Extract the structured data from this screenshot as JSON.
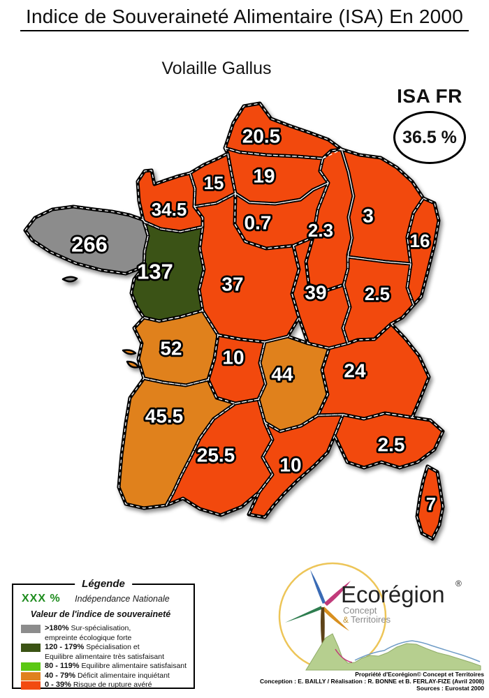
{
  "page": {
    "title": "Indice de Souveraineté Alimentaire (ISA) En 2000",
    "subtitle": "Volaille Gallus"
  },
  "isa_fr": {
    "label": "ISA FR",
    "value": "36.5 %"
  },
  "colors": {
    "sur_specialisation": "#8C8C8C",
    "specialisation": "#3B5314",
    "equilibre": "#5BC813",
    "deficit": "#E0811E",
    "rupture": "#F24A10",
    "independance_green": "#1E8C1E"
  },
  "legend": {
    "title": "Légende",
    "independance": {
      "symbol": "XXX %",
      "label": "Indépendance Nationale"
    },
    "subtitle": "Valeur de l'indice de souveraineté",
    "items": [
      {
        "range": ">180%",
        "text": "Sur-spécialisation,",
        "text2": "empreinte écologique forte",
        "category": "sur_specialisation"
      },
      {
        "range": "120 - 179%",
        "text": "Spécialisation et",
        "text2": "Equilibre alimentaire très satisfaisant",
        "category": "specialisation"
      },
      {
        "range": "80 - 119%",
        "text": "Equilibre alimentaire satisfaisant",
        "category": "equilibre"
      },
      {
        "range": "40 - 79%",
        "text": "Déficit alimentaire inquiétant",
        "category": "deficit"
      },
      {
        "range": "0 - 39%",
        "text": "Risque de rupture avéré",
        "category": "rupture"
      }
    ]
  },
  "logo": {
    "brand": "Ecorégion",
    "registered": "®",
    "sub1": "Concept",
    "sub2_amp": "&",
    "sub2": "Territoires"
  },
  "credits": {
    "line1": "Propriété d'Ecorégion© Concept et Territoires",
    "line2": "Conception : E. BAILLY / Réalisation : R. BONNE et B. FERLAY-FIZE (Avril 2008)",
    "line3": "Sources : Eurostat 2000"
  },
  "chart_data": {
    "type": "choropleth",
    "title": "Indice de Souveraineté Alimentaire (ISA) En 2000",
    "subtitle": "Volaille Gallus",
    "unit": "%",
    "national": {
      "label": "ISA FR",
      "value": "36.5 %"
    },
    "classes": [
      {
        "range": ">180%",
        "label": "Sur-spécialisation, empreinte écologique forte",
        "color_key": "sur_specialisation"
      },
      {
        "range": "120 - 179%",
        "label": "Spécialisation et Equilibre alimentaire très satisfaisant",
        "color_key": "specialisation"
      },
      {
        "range": "80 - 119%",
        "label": "Equilibre alimentaire satisfaisant",
        "color_key": "equilibre"
      },
      {
        "range": "40 - 79%",
        "label": "Déficit alimentaire inquiétant",
        "color_key": "deficit"
      },
      {
        "range": "0 - 39%",
        "label": "Risque de rupture avéré",
        "color_key": "rupture"
      }
    ],
    "regions": [
      {
        "id": "nord-pas-de-calais",
        "value": "20.5",
        "category": "rupture"
      },
      {
        "id": "picardie",
        "value": "19",
        "category": "rupture"
      },
      {
        "id": "haute-normandie",
        "value": "15",
        "category": "rupture"
      },
      {
        "id": "basse-normandie",
        "value": "34.5",
        "category": "rupture"
      },
      {
        "id": "ile-de-france",
        "value": "0.7",
        "category": "rupture"
      },
      {
        "id": "champagne-ardenne",
        "value": "2.3",
        "category": "rupture"
      },
      {
        "id": "lorraine",
        "value": "3",
        "category": "rupture"
      },
      {
        "id": "alsace",
        "value": "16",
        "category": "rupture"
      },
      {
        "id": "bretagne",
        "value": "266",
        "category": "sur_specialisation"
      },
      {
        "id": "pays-de-la-loire",
        "value": "137",
        "category": "specialisation"
      },
      {
        "id": "centre",
        "value": "37",
        "category": "rupture"
      },
      {
        "id": "bourgogne",
        "value": "39",
        "category": "rupture"
      },
      {
        "id": "franche-comte",
        "value": "2.5",
        "category": "rupture"
      },
      {
        "id": "poitou-charentes",
        "value": "52",
        "category": "deficit"
      },
      {
        "id": "limousin",
        "value": "10",
        "category": "rupture"
      },
      {
        "id": "auvergne",
        "value": "44",
        "category": "deficit"
      },
      {
        "id": "rhone-alpes",
        "value": "24",
        "category": "rupture"
      },
      {
        "id": "aquitaine",
        "value": "45.5",
        "category": "deficit"
      },
      {
        "id": "midi-pyrenees",
        "value": "25.5",
        "category": "rupture"
      },
      {
        "id": "languedoc-roussillon",
        "value": "10",
        "category": "rupture"
      },
      {
        "id": "provence-alpes-cote-d-azur",
        "value": "2.5",
        "category": "rupture"
      },
      {
        "id": "corse",
        "value": "7",
        "category": "rupture"
      }
    ]
  }
}
